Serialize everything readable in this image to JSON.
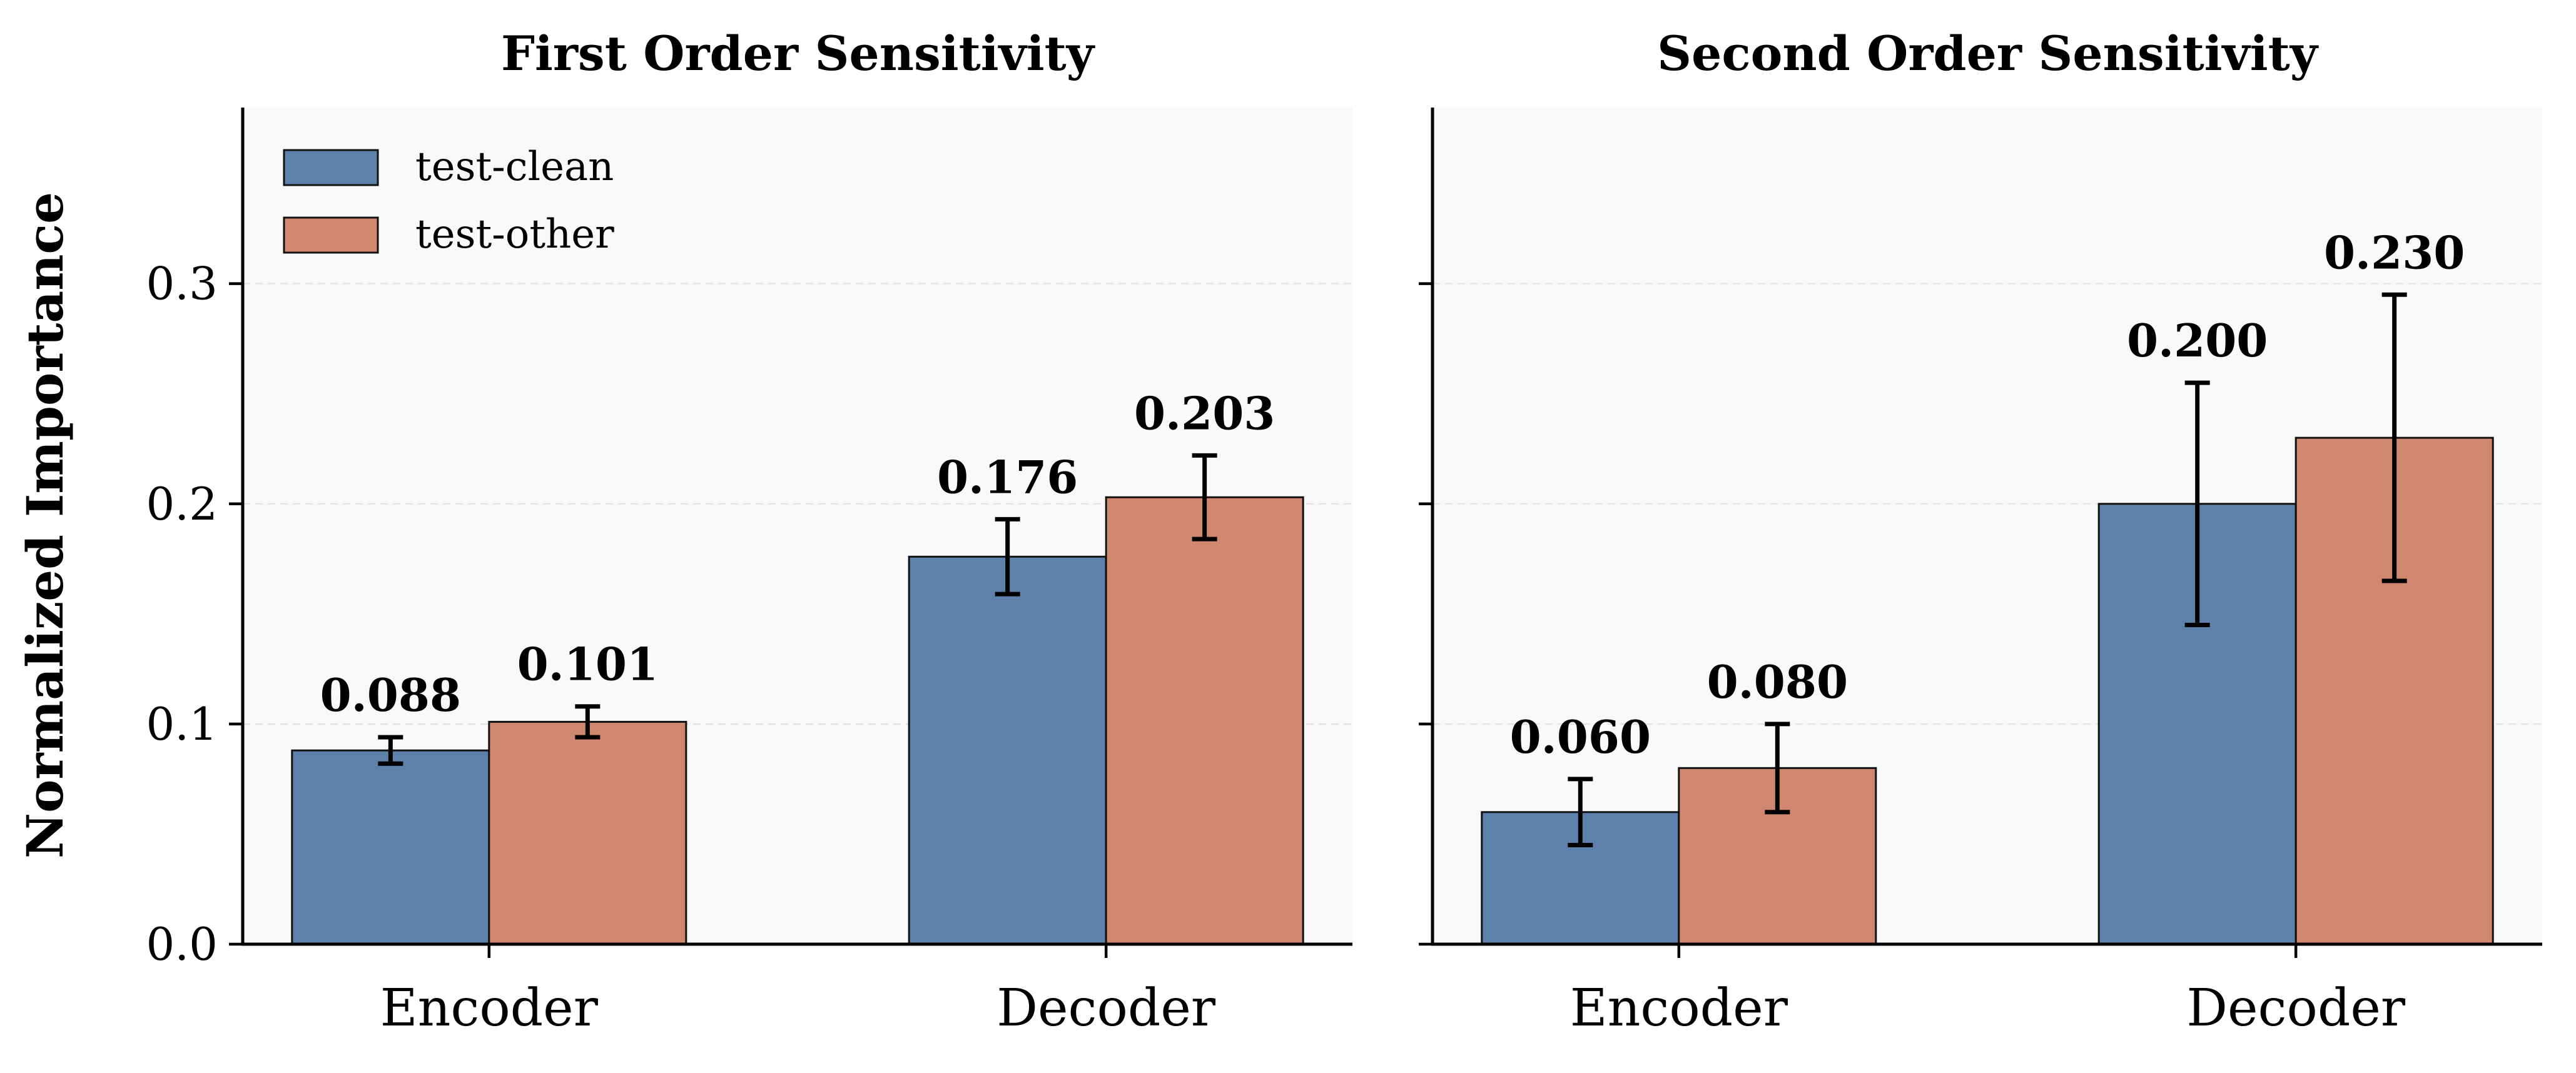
{
  "chart_data": {
    "type": "bar",
    "ylabel": "Normalized Importance",
    "ylim": [
      0,
      0.38
    ],
    "yticks": [
      0.0,
      0.1,
      0.2,
      0.3
    ],
    "ytick_labels": [
      "0.0",
      "0.1",
      "0.2",
      "0.3"
    ],
    "grid": "horizontal dashed",
    "legend": {
      "position": "upper-left",
      "entries": [
        {
          "name": "test-clean",
          "color": "#5e81ac"
        },
        {
          "name": "test-other",
          "color": "#cf8770"
        }
      ]
    },
    "panels": [
      {
        "title": "First Order Sensitivity",
        "categories": [
          "Encoder",
          "Decoder"
        ],
        "series": [
          {
            "name": "test-clean",
            "color": "#5e81ac",
            "values": [
              0.088,
              0.176
            ],
            "errors": [
              0.006,
              0.017
            ],
            "labels": [
              "0.088",
              "0.176"
            ]
          },
          {
            "name": "test-other",
            "color": "#cf8770",
            "values": [
              0.101,
              0.203
            ],
            "errors": [
              0.007,
              0.019
            ],
            "labels": [
              "0.101",
              "0.203"
            ]
          }
        ]
      },
      {
        "title": "Second Order Sensitivity",
        "categories": [
          "Encoder",
          "Decoder"
        ],
        "series": [
          {
            "name": "test-clean",
            "color": "#5e81ac",
            "values": [
              0.06,
              0.2
            ],
            "errors": [
              0.015,
              0.055
            ],
            "labels": [
              "0.060",
              "0.200"
            ]
          },
          {
            "name": "test-other",
            "color": "#cf8770",
            "values": [
              0.08,
              0.23
            ],
            "errors": [
              0.02,
              0.065
            ],
            "labels": [
              "0.080",
              "0.230"
            ]
          }
        ]
      }
    ]
  }
}
